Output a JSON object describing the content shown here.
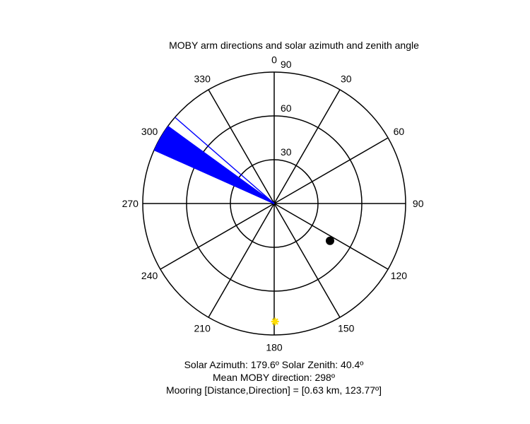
{
  "chart_data": {
    "type": "polar",
    "title": "MOBY arm directions and solar azimuth and zenith angle",
    "orientation": "clockwise, 0 at top",
    "angle_ticks": [
      0,
      30,
      60,
      90,
      120,
      150,
      180,
      210,
      240,
      270,
      300,
      330
    ],
    "radial_ticks": [
      30,
      60,
      90
    ],
    "rlim": [
      0,
      90
    ],
    "arm_directions": {
      "color": "#0000ff",
      "radius": 90,
      "range_deg": [
        294,
        306
      ],
      "outliers_deg": [
        302.5,
        306,
        311
      ],
      "mean_deg": 298
    },
    "sun": {
      "azimuth": 179.6,
      "zenith": 40.4,
      "color": "#ffdd00"
    },
    "mooring": {
      "direction": 123.77,
      "radius": 46,
      "color": "#000000"
    },
    "captions": {
      "solar": "Solar Azimuth: 179.6º   Solar Zenith: 40.4º",
      "mean": "Mean MOBY direction: 298º",
      "mooring": "Mooring [Distance,Direction] = [0.63 km, 123.77º]"
    }
  }
}
